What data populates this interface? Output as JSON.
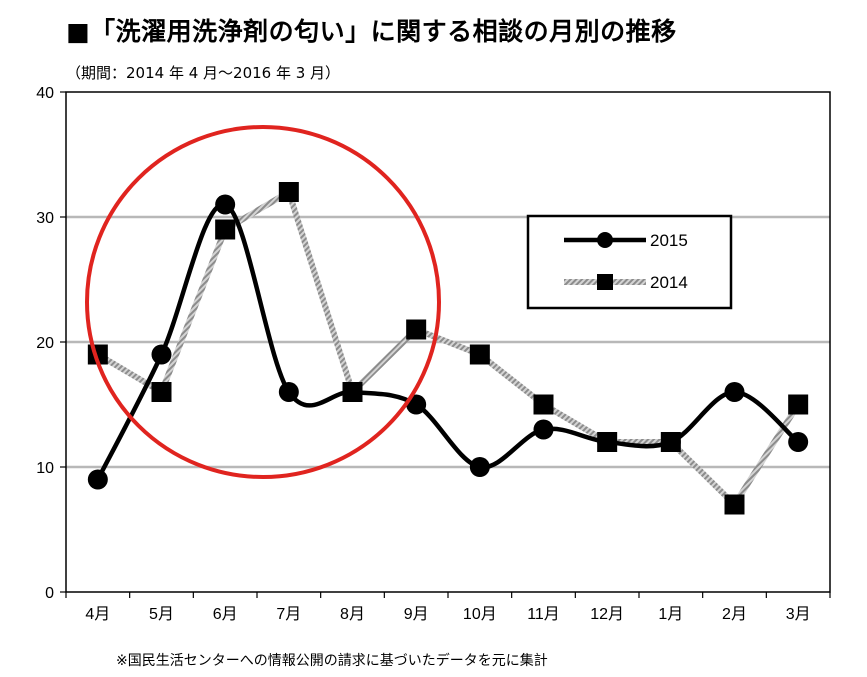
{
  "chart_data": {
    "type": "line",
    "title": "■「洗濯用洗浄剤の匂い」に関する相談の月別の推移",
    "subtitle": "（期間：2014 年 4 月～2016 年 3 月）",
    "footnote": "※国民生活センターへの情報公開の請求に基づいたデータを元に集計",
    "categories": [
      "4月",
      "5月",
      "6月",
      "7月",
      "8月",
      "9月",
      "10月",
      "11月",
      "12月",
      "1月",
      "2月",
      "3月"
    ],
    "ylim": [
      0,
      40
    ],
    "yticks": [
      0,
      10,
      20,
      30,
      40
    ],
    "grid": true,
    "legend_position": "right",
    "series": [
      {
        "name": "2015",
        "values": [
          9,
          19,
          31,
          16,
          16,
          15,
          10,
          13,
          12,
          12,
          16,
          12
        ],
        "color": "#000000",
        "marker": "circle",
        "style": "solid-smooth"
      },
      {
        "name": "2014",
        "values": [
          19,
          16,
          29,
          32,
          16,
          21,
          19,
          15,
          12,
          12,
          7,
          15
        ],
        "color": "#000000",
        "marker": "square",
        "style": "gray-hatched"
      }
    ],
    "annotation": {
      "type": "circle",
      "color": "#e0241f"
    }
  }
}
